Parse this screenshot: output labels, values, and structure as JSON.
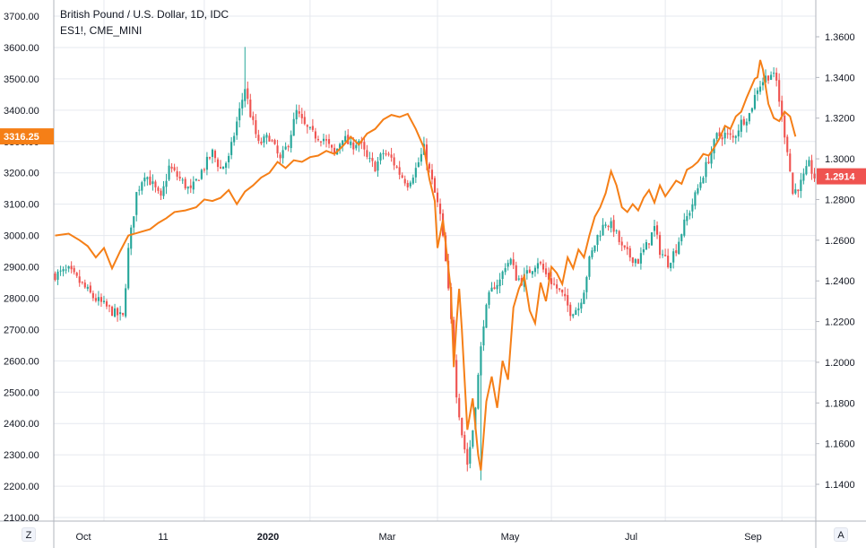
{
  "header": {
    "title": "British Pound / U.S. Dollar, 1D, IDC",
    "subtitle": "ES1!, CME_MINI"
  },
  "corner_buttons": {
    "left": "Z",
    "right": "A"
  },
  "colors": {
    "up": "#26a69a",
    "down": "#ef5350",
    "line": "#f57f17",
    "grid": "#e6e9ef",
    "axis": "#b2b5be",
    "text": "#131722"
  },
  "chart_data": {
    "type": "candlestick+line",
    "left_axis": {
      "ylim": [
        2100,
        3700
      ],
      "ticks": [
        "2100.00",
        "2200.00",
        "2300.00",
        "2400.00",
        "2500.00",
        "2600.00",
        "2700.00",
        "2800.00",
        "2900.00",
        "3000.00",
        "3100.00",
        "3200.00",
        "3300.00",
        "3400.00",
        "3500.00",
        "3600.00",
        "3700.00"
      ]
    },
    "right_axis": {
      "ylim": [
        1.12,
        1.36
      ],
      "ticks": [
        "1.1400",
        "1.1600",
        "1.1800",
        "1.2000",
        "1.2200",
        "1.2400",
        "1.2600",
        "1.2800",
        "1.3000",
        "1.3200",
        "1.3400",
        "1.3600"
      ]
    },
    "x_axis": {
      "labels": [
        "Oct",
        "11",
        "2020",
        "Mar",
        "May",
        "Jul",
        "Sep"
      ]
    },
    "last_values": {
      "left": "3316.25",
      "right": "1.2914"
    },
    "gbpusd_anchors": [
      [
        0,
        1.243
      ],
      [
        5,
        1.245
      ],
      [
        10,
        1.238
      ],
      [
        14,
        1.232
      ],
      [
        18,
        1.228
      ],
      [
        22,
        1.224
      ],
      [
        25,
        1.222
      ],
      [
        27,
        1.255
      ],
      [
        30,
        1.283
      ],
      [
        33,
        1.293
      ],
      [
        36,
        1.287
      ],
      [
        39,
        1.28
      ],
      [
        42,
        1.296
      ],
      [
        46,
        1.29
      ],
      [
        50,
        1.284
      ],
      [
        54,
        1.294
      ],
      [
        58,
        1.303
      ],
      [
        61,
        1.295
      ],
      [
        64,
        1.3
      ],
      [
        67,
        1.318
      ],
      [
        70,
        1.335
      ],
      [
        72,
        1.322
      ],
      [
        75,
        1.307
      ],
      [
        79,
        1.311
      ],
      [
        83,
        1.299
      ],
      [
        86,
        1.308
      ],
      [
        89,
        1.323
      ],
      [
        92,
        1.316
      ],
      [
        95,
        1.312
      ],
      [
        99,
        1.31
      ],
      [
        103,
        1.302
      ],
      [
        106,
        1.311
      ],
      [
        109,
        1.306
      ],
      [
        112,
        1.309
      ],
      [
        115,
        1.3
      ],
      [
        118,
        1.296
      ],
      [
        121,
        1.303
      ],
      [
        124,
        1.3
      ],
      [
        127,
        1.293
      ],
      [
        130,
        1.288
      ],
      [
        133,
        1.295
      ],
      [
        136,
        1.305
      ],
      [
        138,
        1.294
      ],
      [
        140,
        1.283
      ],
      [
        142,
        1.272
      ],
      [
        144,
        1.249
      ],
      [
        146,
        1.22
      ],
      [
        148,
        1.185
      ],
      [
        150,
        1.165
      ],
      [
        152,
        1.15
      ],
      [
        154,
        1.167
      ],
      [
        156,
        1.193
      ],
      [
        158,
        1.22
      ],
      [
        160,
        1.232
      ],
      [
        162,
        1.238
      ],
      [
        164,
        1.24
      ],
      [
        166,
        1.248
      ],
      [
        168,
        1.25
      ],
      [
        170,
        1.242
      ],
      [
        172,
        1.24
      ],
      [
        175,
        1.245
      ],
      [
        178,
        1.25
      ],
      [
        181,
        1.243
      ],
      [
        184,
        1.238
      ],
      [
        187,
        1.233
      ],
      [
        190,
        1.225
      ],
      [
        193,
        1.227
      ],
      [
        195,
        1.236
      ],
      [
        197,
        1.25
      ],
      [
        200,
        1.262
      ],
      [
        203,
        1.269
      ],
      [
        206,
        1.266
      ],
      [
        209,
        1.256
      ],
      [
        212,
        1.252
      ],
      [
        215,
        1.25
      ],
      [
        218,
        1.257
      ],
      [
        221,
        1.266
      ],
      [
        223,
        1.255
      ],
      [
        226,
        1.249
      ],
      [
        229,
        1.256
      ],
      [
        232,
        1.268
      ],
      [
        235,
        1.278
      ],
      [
        238,
        1.289
      ],
      [
        241,
        1.3
      ],
      [
        244,
        1.311
      ],
      [
        247,
        1.312
      ],
      [
        250,
        1.31
      ],
      [
        253,
        1.318
      ],
      [
        256,
        1.322
      ],
      [
        259,
        1.335
      ],
      [
        262,
        1.34
      ],
      [
        264,
        1.342
      ],
      [
        266,
        1.338
      ],
      [
        268,
        1.32
      ],
      [
        270,
        1.305
      ],
      [
        272,
        1.283
      ],
      [
        275,
        1.288
      ],
      [
        278,
        1.297
      ],
      [
        280,
        1.291
      ]
    ],
    "es_anchors": [
      [
        0,
        3000
      ],
      [
        5,
        3006
      ],
      [
        9,
        2985
      ],
      [
        12,
        2966
      ],
      [
        15,
        2930
      ],
      [
        18,
        2960
      ],
      [
        21,
        2895
      ],
      [
        24,
        2950
      ],
      [
        27,
        3000
      ],
      [
        31,
        3010
      ],
      [
        35,
        3020
      ],
      [
        38,
        3040
      ],
      [
        41,
        3055
      ],
      [
        44,
        3075
      ],
      [
        48,
        3080
      ],
      [
        52,
        3090
      ],
      [
        55,
        3115
      ],
      [
        58,
        3110
      ],
      [
        61,
        3120
      ],
      [
        64,
        3145
      ],
      [
        67,
        3100
      ],
      [
        70,
        3140
      ],
      [
        73,
        3160
      ],
      [
        76,
        3185
      ],
      [
        79,
        3200
      ],
      [
        82,
        3235
      ],
      [
        85,
        3215
      ],
      [
        88,
        3240
      ],
      [
        91,
        3235
      ],
      [
        94,
        3250
      ],
      [
        97,
        3255
      ],
      [
        100,
        3270
      ],
      [
        103,
        3260
      ],
      [
        106,
        3285
      ],
      [
        109,
        3315
      ],
      [
        112,
        3290
      ],
      [
        115,
        3325
      ],
      [
        118,
        3340
      ],
      [
        121,
        3370
      ],
      [
        124,
        3385
      ],
      [
        127,
        3378
      ],
      [
        130,
        3388
      ],
      [
        133,
        3340
      ],
      [
        136,
        3280
      ],
      [
        138,
        3180
      ],
      [
        140,
        3110
      ],
      [
        141,
        2960
      ],
      [
        143,
        3050
      ],
      [
        144,
        2975
      ],
      [
        146,
        2820
      ],
      [
        147,
        2580
      ],
      [
        148,
        2720
      ],
      [
        149,
        2830
      ],
      [
        150,
        2700
      ],
      [
        152,
        2380
      ],
      [
        154,
        2480
      ],
      [
        156,
        2300
      ],
      [
        157,
        2250
      ],
      [
        159,
        2470
      ],
      [
        161,
        2550
      ],
      [
        163,
        2450
      ],
      [
        165,
        2600
      ],
      [
        167,
        2540
      ],
      [
        169,
        2770
      ],
      [
        171,
        2830
      ],
      [
        173,
        2870
      ],
      [
        175,
        2760
      ],
      [
        177,
        2720
      ],
      [
        179,
        2850
      ],
      [
        181,
        2790
      ],
      [
        183,
        2900
      ],
      [
        185,
        2880
      ],
      [
        187,
        2845
      ],
      [
        189,
        2930
      ],
      [
        191,
        2895
      ],
      [
        193,
        2955
      ],
      [
        195,
        2930
      ],
      [
        197,
        3000
      ],
      [
        199,
        3060
      ],
      [
        201,
        3090
      ],
      [
        203,
        3135
      ],
      [
        205,
        3205
      ],
      [
        207,
        3160
      ],
      [
        209,
        3090
      ],
      [
        211,
        3075
      ],
      [
        213,
        3100
      ],
      [
        215,
        3080
      ],
      [
        217,
        3120
      ],
      [
        219,
        3145
      ],
      [
        221,
        3105
      ],
      [
        223,
        3160
      ],
      [
        225,
        3125
      ],
      [
        227,
        3150
      ],
      [
        229,
        3175
      ],
      [
        231,
        3165
      ],
      [
        233,
        3210
      ],
      [
        235,
        3220
      ],
      [
        237,
        3235
      ],
      [
        239,
        3260
      ],
      [
        241,
        3255
      ],
      [
        243,
        3280
      ],
      [
        245,
        3310
      ],
      [
        247,
        3350
      ],
      [
        249,
        3340
      ],
      [
        251,
        3380
      ],
      [
        253,
        3395
      ],
      [
        255,
        3440
      ],
      [
        257,
        3480
      ],
      [
        258,
        3500
      ],
      [
        259,
        3505
      ],
      [
        260,
        3560
      ],
      [
        261,
        3530
      ],
      [
        263,
        3420
      ],
      [
        265,
        3375
      ],
      [
        267,
        3365
      ],
      [
        269,
        3395
      ],
      [
        271,
        3380
      ],
      [
        273,
        3316
      ]
    ]
  }
}
